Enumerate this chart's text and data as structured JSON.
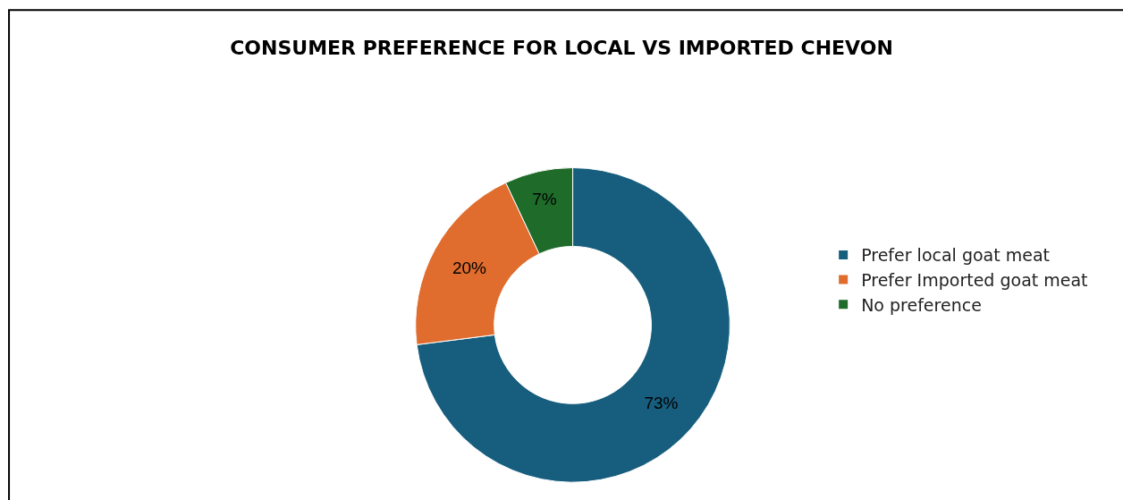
{
  "chart_data": {
    "type": "donut",
    "title": "CONSUMER PREFERENCE FOR LOCAL VS IMPORTED CHEVON",
    "categories": [
      "Prefer local goat meat",
      "Prefer Imported goat meat",
      "No preference"
    ],
    "values": [
      73,
      20,
      7
    ],
    "colors": [
      "#175e7e",
      "#e06c2e",
      "#1e6b2a"
    ],
    "value_labels": [
      "73%",
      "20%",
      "7%"
    ],
    "legend": "right"
  }
}
